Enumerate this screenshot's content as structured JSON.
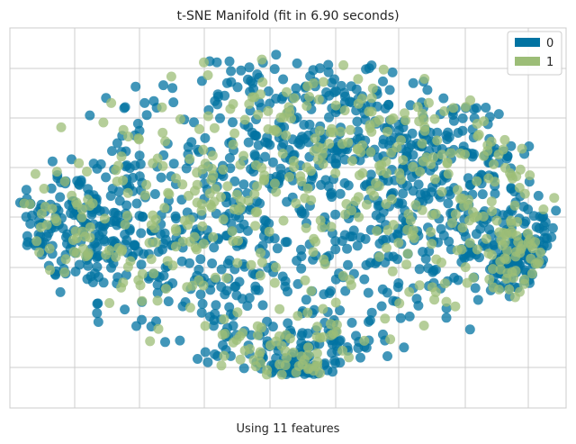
{
  "chart_data": {
    "type": "scatter",
    "title": "t-SNE Manifold (fit in 6.90 seconds)",
    "xlabel": "Using 11 features",
    "ylabel": "",
    "grid": true,
    "legend": "top-right",
    "xlim": [
      -60,
      60
    ],
    "ylim": [
      -58,
      58
    ],
    "series": [
      {
        "name": "0",
        "color": "#0173a2",
        "count": 1300
      },
      {
        "name": "1",
        "color": "#9cbd77",
        "count": 550
      }
    ]
  }
}
